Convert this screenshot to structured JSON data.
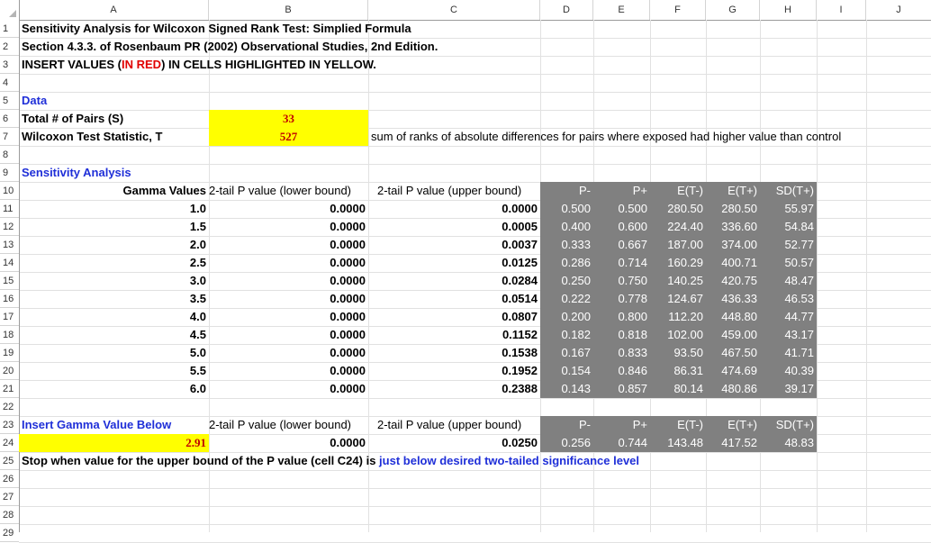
{
  "columns": [
    "A",
    "B",
    "C",
    "D",
    "E",
    "F",
    "G",
    "H",
    "I",
    "J"
  ],
  "rows": [
    "1",
    "2",
    "3",
    "4",
    "5",
    "6",
    "7",
    "8",
    "9",
    "10",
    "11",
    "12",
    "13",
    "14",
    "15",
    "16",
    "17",
    "18",
    "19",
    "20",
    "21",
    "22",
    "23",
    "24",
    "25",
    "26",
    "27",
    "28",
    "29"
  ],
  "title": {
    "line1": "Sensitivity Analysis for Wilcoxon Signed Rank Test: Simplied Formula",
    "line2": "Section 4.3.3. of Rosenbaum PR (2002) Observational Studies, 2nd Edition.",
    "line3_pre": "INSERT VALUES (",
    "line3_red": "IN RED",
    "line3_post": ") IN CELLS HIGHLIGHTED IN YELLOW."
  },
  "data_section": {
    "label": "Data",
    "pairs_label": "Total # of Pairs (S)",
    "pairs_value": "33",
    "stat_label": "Wilcoxon Test Statistic, T",
    "stat_value": "527",
    "stat_note": "sum of ranks of absolute differences for pairs where exposed had higher value than control"
  },
  "sens_section": {
    "label": "Sensitivity Analysis",
    "headers": {
      "gamma": "Gamma Values",
      "lower": "2-tail P value (lower bound)",
      "upper": "2-tail P value (upper bound)",
      "pminus": "P-",
      "pplus": "P+",
      "etminus": "E(T-)",
      "etplus": "E(T+)",
      "sd": "SD(T+)"
    },
    "rows": [
      {
        "gamma": "1.0",
        "lower": "0.0000",
        "upper": "0.0000",
        "pminus": "0.500",
        "pplus": "0.500",
        "etminus": "280.50",
        "etplus": "280.50",
        "sd": "55.97"
      },
      {
        "gamma": "1.5",
        "lower": "0.0000",
        "upper": "0.0005",
        "pminus": "0.400",
        "pplus": "0.600",
        "etminus": "224.40",
        "etplus": "336.60",
        "sd": "54.84"
      },
      {
        "gamma": "2.0",
        "lower": "0.0000",
        "upper": "0.0037",
        "pminus": "0.333",
        "pplus": "0.667",
        "etminus": "187.00",
        "etplus": "374.00",
        "sd": "52.77"
      },
      {
        "gamma": "2.5",
        "lower": "0.0000",
        "upper": "0.0125",
        "pminus": "0.286",
        "pplus": "0.714",
        "etminus": "160.29",
        "etplus": "400.71",
        "sd": "50.57"
      },
      {
        "gamma": "3.0",
        "lower": "0.0000",
        "upper": "0.0284",
        "pminus": "0.250",
        "pplus": "0.750",
        "etminus": "140.25",
        "etplus": "420.75",
        "sd": "48.47"
      },
      {
        "gamma": "3.5",
        "lower": "0.0000",
        "upper": "0.0514",
        "pminus": "0.222",
        "pplus": "0.778",
        "etminus": "124.67",
        "etplus": "436.33",
        "sd": "46.53"
      },
      {
        "gamma": "4.0",
        "lower": "0.0000",
        "upper": "0.0807",
        "pminus": "0.200",
        "pplus": "0.800",
        "etminus": "112.20",
        "etplus": "448.80",
        "sd": "44.77"
      },
      {
        "gamma": "4.5",
        "lower": "0.0000",
        "upper": "0.1152",
        "pminus": "0.182",
        "pplus": "0.818",
        "etminus": "102.00",
        "etplus": "459.00",
        "sd": "43.17"
      },
      {
        "gamma": "5.0",
        "lower": "0.0000",
        "upper": "0.1538",
        "pminus": "0.167",
        "pplus": "0.833",
        "etminus": "93.50",
        "etplus": "467.50",
        "sd": "41.71"
      },
      {
        "gamma": "5.5",
        "lower": "0.0000",
        "upper": "0.1952",
        "pminus": "0.154",
        "pplus": "0.846",
        "etminus": "86.31",
        "etplus": "474.69",
        "sd": "40.39"
      },
      {
        "gamma": "6.0",
        "lower": "0.0000",
        "upper": "0.2388",
        "pminus": "0.143",
        "pplus": "0.857",
        "etminus": "80.14",
        "etplus": "480.86",
        "sd": "39.17"
      }
    ]
  },
  "insert_section": {
    "label": "Insert Gamma Value Below",
    "gamma": "2.91",
    "lower": "0.0000",
    "upper": "0.0250",
    "pminus": "0.256",
    "pplus": "0.744",
    "etminus": "143.48",
    "etplus": "417.52",
    "sd": "48.83"
  },
  "stop_note": {
    "bold": "Stop when value for the upper bound of the P value (cell C24) is ",
    "blue": "just below desired two-tailed significance level"
  },
  "colors": {
    "highlight": "#ffff00",
    "gray_block": "#808080",
    "input_red": "#c00000",
    "section_blue": "#1f2fd8"
  }
}
